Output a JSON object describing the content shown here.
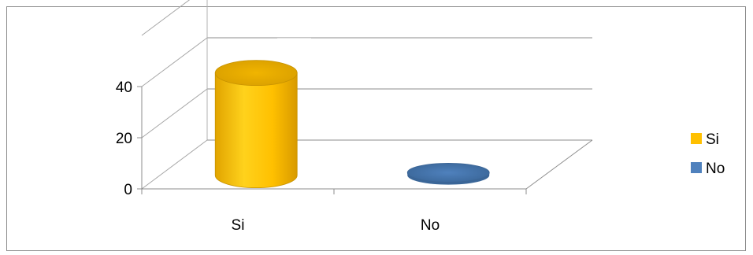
{
  "chart_data": {
    "type": "bar",
    "style": "3d-cylinder",
    "categories": [
      "Si",
      "No"
    ],
    "series": [
      {
        "name": "Si",
        "values": [
          40,
          0
        ],
        "color": "#ffc000"
      },
      {
        "name": "No",
        "values": [
          0,
          1
        ],
        "color": "#4f81bd"
      }
    ],
    "y_ticks": [
      "0",
      "20",
      "40"
    ],
    "ylim": [
      0,
      60
    ],
    "grid": true,
    "legend": {
      "position": "right",
      "entries": [
        {
          "label": "Si",
          "color": "#ffc000"
        },
        {
          "label": "No",
          "color": "#4f81bd"
        }
      ]
    },
    "title": "",
    "xlabel": "",
    "ylabel": ""
  }
}
